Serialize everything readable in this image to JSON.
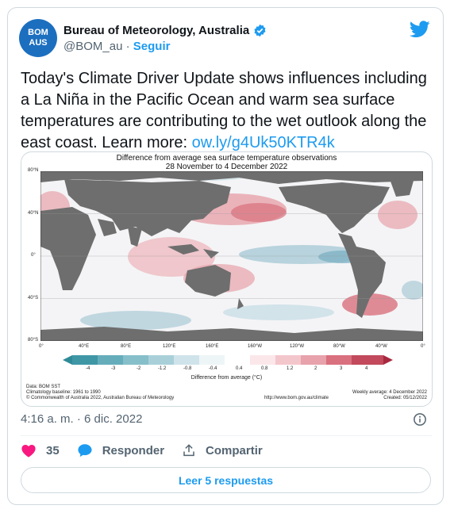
{
  "author": {
    "avatar_line1": "BOM",
    "avatar_line2": "AUS",
    "name": "Bureau of Meteorology, Australia",
    "handle": "@BOM_au",
    "separator": "·",
    "follow_label": "Seguir",
    "verified_icon": "verified-badge-icon"
  },
  "tweet": {
    "text": "Today's Climate Driver Update shows influences including a La Niña in the Pacific Ocean and warm sea surface temperatures are contributing to the wet outlook along the east coast. Learn more: ",
    "link": "ow.ly/g4Uk50KTR4k",
    "timestamp": "4:16 a. m. · 6 dic. 2022"
  },
  "media": {
    "title": "Difference from average sea surface temperature observations",
    "subtitle": "28 November to 4 December 2022",
    "lat_labels": [
      "80°N",
      "40°N",
      "0°",
      "40°S",
      "80°S"
    ],
    "lon_labels": [
      "0°",
      "40°E",
      "80°E",
      "120°E",
      "160°E",
      "160°W",
      "120°W",
      "80°W",
      "40°W",
      "0°"
    ],
    "colorbar_ticks": [
      "-4",
      "-3",
      "-2",
      "-1.2",
      "-0.8",
      "-0.4",
      "0.4",
      "0.8",
      "1.2",
      "2",
      "3",
      "4"
    ],
    "colorbar_label": "Difference from average (°C)",
    "data_source": "Data: BOM SST",
    "baseline": "Climatology baseline: 1961 to 1990",
    "copyright": "© Commonwealth of Australia 2022, Australian Bureau of Meteorology",
    "weekly": "Weekly average: 4 December 2022",
    "url": "http://www.bom.gov.au/climate",
    "created": "Created: 05/12/2022",
    "colors": {
      "land": "#6e6e6e",
      "ocean_neutral": "#f4f4f6",
      "warm": "#d9707e",
      "cool": "#7fb3c6"
    }
  },
  "actions": {
    "likes_count": "35",
    "reply_label": "Responder",
    "share_label": "Compartir",
    "read_replies_label": "Leer 5 respuestas"
  },
  "colors": {
    "accent": "#1d9bf0",
    "like": "#f91880"
  }
}
